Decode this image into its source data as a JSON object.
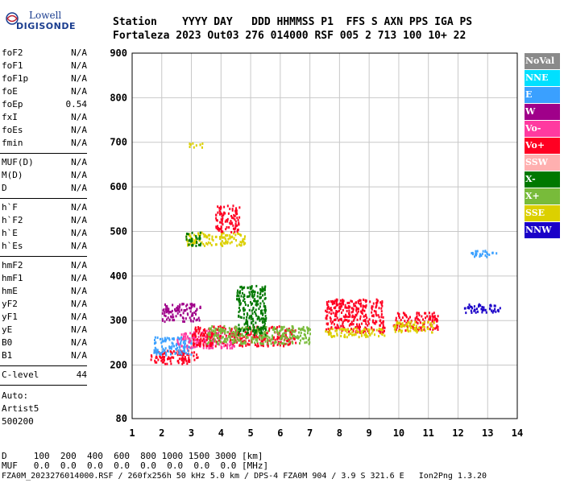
{
  "logo": {
    "line1": "Lowell",
    "line2": "DIGISONDE"
  },
  "header": {
    "row1": "Station    YYYY DAY   DDD HHMMSS P1  FFS S AXN PPS IGA PS",
    "row2": "Fortaleza 2023 Out03 276 014000 RSF 005 2 713 100 10+ 22"
  },
  "params": {
    "group1": [
      {
        "name": "foF2",
        "value": "N/A"
      },
      {
        "name": "foF1",
        "value": "N/A"
      },
      {
        "name": "foF1p",
        "value": "N/A"
      },
      {
        "name": "foE",
        "value": "N/A"
      },
      {
        "name": "foEp",
        "value": "0.54"
      },
      {
        "name": "fxI",
        "value": "N/A"
      },
      {
        "name": "foEs",
        "value": "N/A"
      },
      {
        "name": "fmin",
        "value": "N/A"
      }
    ],
    "group2": [
      {
        "name": "MUF(D)",
        "value": "N/A"
      },
      {
        "name": "M(D)",
        "value": "N/A"
      },
      {
        "name": "D",
        "value": "N/A"
      }
    ],
    "group3": [
      {
        "name": "h`F",
        "value": "N/A"
      },
      {
        "name": "h`F2",
        "value": "N/A"
      },
      {
        "name": "h`E",
        "value": "N/A"
      },
      {
        "name": "h`Es",
        "value": "N/A"
      }
    ],
    "group4": [
      {
        "name": "hmF2",
        "value": "N/A"
      },
      {
        "name": "hmF1",
        "value": "N/A"
      },
      {
        "name": "hmE",
        "value": "N/A"
      },
      {
        "name": "yF2",
        "value": "N/A"
      },
      {
        "name": "yF1",
        "value": "N/A"
      },
      {
        "name": "yE",
        "value": "N/A"
      },
      {
        "name": "B0",
        "value": "N/A"
      },
      {
        "name": "B1",
        "value": "N/A"
      }
    ],
    "clevel": {
      "name": "C-level",
      "value": "44"
    }
  },
  "auto": {
    "line1": "Auto:",
    "line2": "Artist5",
    "line3": "500200"
  },
  "legend": [
    {
      "label": "NoVal",
      "color": "#8a8a8a"
    },
    {
      "label": "NNE",
      "color": "#00e0ff"
    },
    {
      "label": "E",
      "color": "#3aa0ff"
    },
    {
      "label": "W",
      "color": "#a0008a"
    },
    {
      "label": "Vo-",
      "color": "#ff3aa0"
    },
    {
      "label": "Vo+",
      "color": "#ff0022"
    },
    {
      "label": "SSW",
      "color": "#ffb0b0"
    },
    {
      "label": "X-",
      "color": "#007800"
    },
    {
      "label": "X+",
      "color": "#78bb3a"
    },
    {
      "label": "SSE",
      "color": "#dcd000"
    },
    {
      "label": "NNW",
      "color": "#1a00c8"
    }
  ],
  "chart_data": {
    "type": "scatter",
    "xlim": [
      1,
      14
    ],
    "ylim": [
      80,
      900
    ],
    "x_ticks": [
      1,
      2,
      3,
      4,
      5,
      6,
      7,
      8,
      9,
      10,
      11,
      12,
      13,
      14
    ],
    "y_ticks": [
      80,
      200,
      300,
      400,
      500,
      600,
      700,
      800,
      900
    ],
    "grid": true,
    "legend_position": "right",
    "clusters": [
      {
        "series": "Vo+",
        "x_range": [
          1.6,
          3.2
        ],
        "y_range": [
          205,
          235
        ]
      },
      {
        "series": "E",
        "x_range": [
          1.7,
          3.0
        ],
        "y_range": [
          225,
          265
        ]
      },
      {
        "series": "Vo-",
        "x_range": [
          2.5,
          4.5
        ],
        "y_range": [
          240,
          280
        ]
      },
      {
        "series": "Vo+",
        "x_range": [
          3.0,
          6.5
        ],
        "y_range": [
          245,
          290
        ]
      },
      {
        "series": "X+",
        "x_range": [
          3.5,
          7.0
        ],
        "y_range": [
          250,
          290
        ]
      },
      {
        "series": "W",
        "x_range": [
          2.0,
          3.3
        ],
        "y_range": [
          300,
          340
        ]
      },
      {
        "series": "X-",
        "x_range": [
          4.5,
          5.5
        ],
        "y_range": [
          270,
          380
        ]
      },
      {
        "series": "Vo+",
        "x_range": [
          7.5,
          9.5
        ],
        "y_range": [
          275,
          350
        ]
      },
      {
        "series": "SSE",
        "x_range": [
          7.5,
          9.5
        ],
        "y_range": [
          265,
          285
        ]
      },
      {
        "series": "Vo+",
        "x_range": [
          9.8,
          11.3
        ],
        "y_range": [
          280,
          320
        ]
      },
      {
        "series": "SSE",
        "x_range": [
          9.8,
          11.2
        ],
        "y_range": [
          275,
          300
        ]
      },
      {
        "series": "SSE",
        "x_range": [
          2.8,
          4.8
        ],
        "y_range": [
          470,
          500
        ]
      },
      {
        "series": "Vo+",
        "x_range": [
          3.8,
          4.6
        ],
        "y_range": [
          500,
          560
        ]
      },
      {
        "series": "X-",
        "x_range": [
          2.8,
          3.3
        ],
        "y_range": [
          470,
          500
        ]
      },
      {
        "series": "NNW",
        "x_range": [
          12.2,
          13.4
        ],
        "y_range": [
          320,
          340
        ]
      },
      {
        "series": "E",
        "x_range": [
          12.4,
          13.3
        ],
        "y_range": [
          445,
          460
        ]
      },
      {
        "series": "SSE",
        "x_range": [
          2.9,
          3.4
        ],
        "y_range": [
          690,
          700
        ]
      }
    ]
  },
  "bottom": {
    "line1": "D     100  200  400  600  800 1000 1500 3000 [km]",
    "line2": "MUF   0.0  0.0  0.0  0.0  0.0  0.0  0.0  0.0 [MHz]",
    "line3": "FZA0M_2023276014000.RSF / 260fx256h 50 kHz 5.0 km / DPS-4 FZA0M 904 / 3.9 S 321.6 E   Ion2Png 1.3.20"
  }
}
